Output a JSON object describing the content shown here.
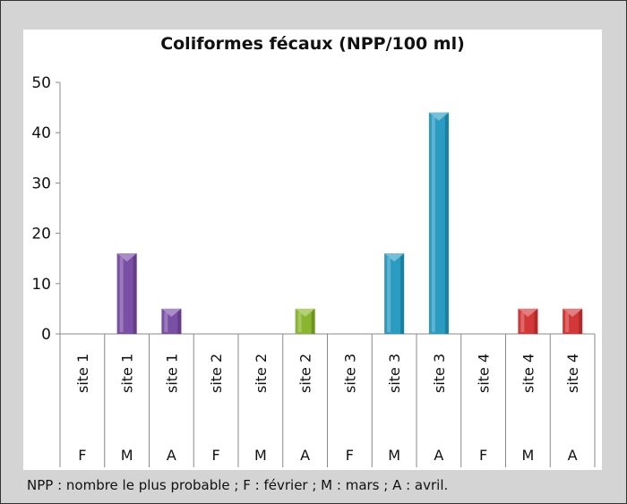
{
  "chart_data": {
    "type": "bar",
    "title": "Coliformes fécaux (NPP/100 ml)",
    "xlabel": "",
    "ylabel": "",
    "ylim": [
      0,
      50
    ],
    "yticks": [
      0,
      10,
      20,
      30,
      40,
      50
    ],
    "grid": false,
    "categories": [
      {
        "site": "site 1",
        "month": "F"
      },
      {
        "site": "site 1",
        "month": "M"
      },
      {
        "site": "site 1",
        "month": "A"
      },
      {
        "site": "site 2",
        "month": "F"
      },
      {
        "site": "site 2",
        "month": "M"
      },
      {
        "site": "site 2",
        "month": "A"
      },
      {
        "site": "site 3",
        "month": "F"
      },
      {
        "site": "site 3",
        "month": "M"
      },
      {
        "site": "site 3",
        "month": "A"
      },
      {
        "site": "site 4",
        "month": "F"
      },
      {
        "site": "site 4",
        "month": "M"
      },
      {
        "site": "site 4",
        "month": "A"
      }
    ],
    "values": [
      0,
      16,
      5,
      0,
      0,
      5,
      0,
      16,
      44,
      0,
      5,
      5
    ],
    "colors": {
      "site 1": "#7a4fa6",
      "site 2": "#8ab52e",
      "site 3": "#2a9cc2",
      "site 4": "#d23838"
    }
  },
  "footnote": "NPP : nombre le plus probable ; F : février ; M : mars ; A : avril."
}
